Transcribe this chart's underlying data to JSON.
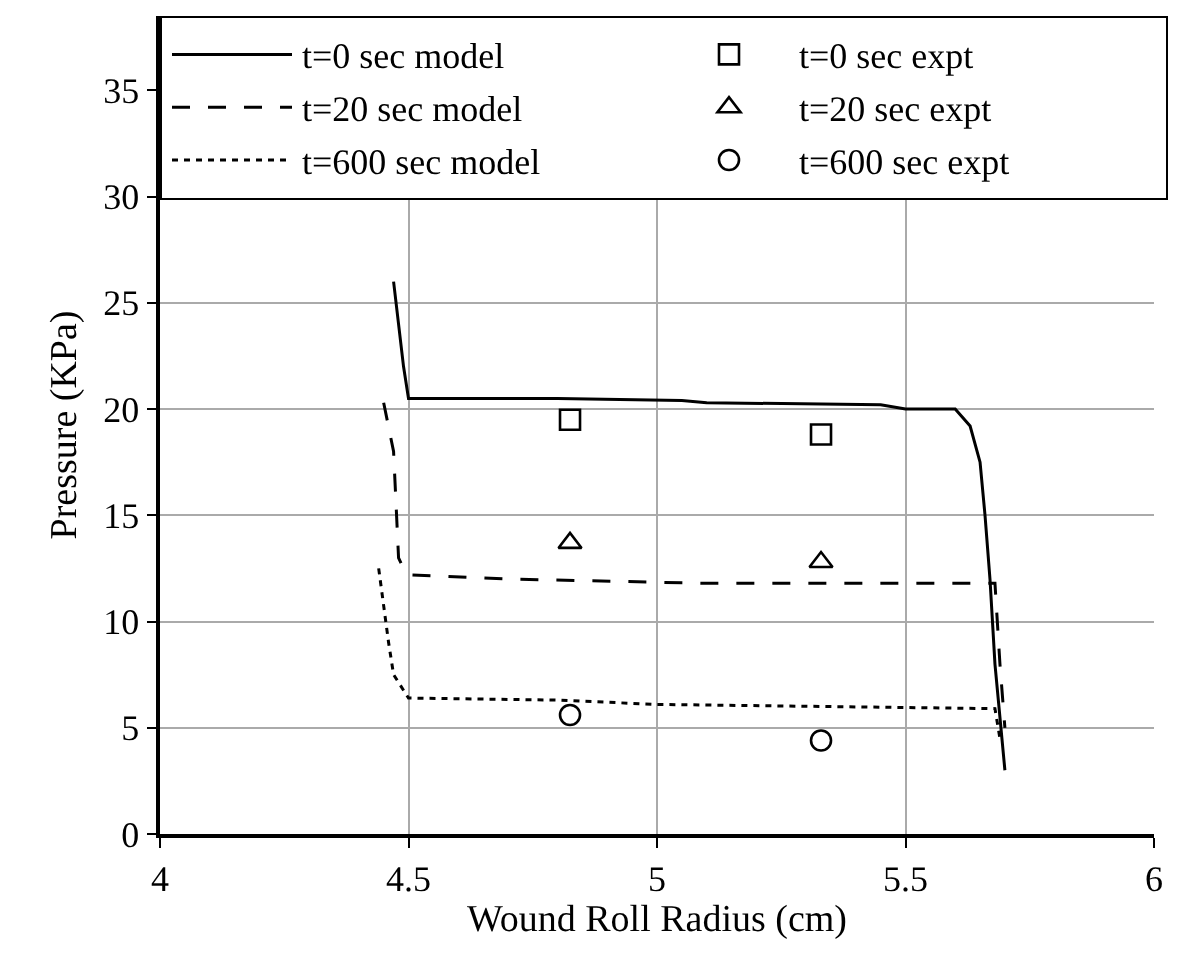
{
  "chart_data": {
    "type": "line",
    "xlabel": "Wound Roll Radius (cm)",
    "ylabel": "Pressure (KPa)",
    "xlim": [
      4,
      6
    ],
    "xticks": [
      4,
      4.5,
      5,
      5.5,
      6
    ],
    "ylim": [
      0,
      38.5
    ],
    "yticks": [
      0,
      5,
      10,
      15,
      20,
      25,
      30,
      35
    ],
    "grid": true,
    "legend": "top",
    "series": [
      {
        "name": "t=0 sec model",
        "line_style": "solid",
        "color": "#000000",
        "x": [
          4.47,
          4.49,
          4.5,
          4.8,
          5.05,
          5.1,
          5.45,
          5.5,
          5.6,
          5.63,
          5.65,
          5.66,
          5.67,
          5.68,
          5.7
        ],
        "values": [
          26,
          22,
          20.5,
          20.5,
          20.4,
          20.3,
          20.2,
          20.0,
          20.0,
          19.2,
          17.5,
          15,
          12,
          8,
          3
        ]
      },
      {
        "name": "t=0 sec expt",
        "type": "scatter",
        "marker": "square",
        "color": "#000000",
        "x": [
          4.825,
          5.33
        ],
        "values": [
          19.5,
          18.8
        ]
      },
      {
        "name": "t=20 sec model",
        "line_style": "dashed",
        "color": "#000000",
        "x": [
          4.45,
          4.47,
          4.48,
          4.49,
          4.5,
          4.7,
          5.1,
          5.68,
          5.69,
          5.7
        ],
        "values": [
          20.3,
          18,
          13,
          12.5,
          12.2,
          12.0,
          11.8,
          11.8,
          8,
          5
        ]
      },
      {
        "name": "t=20 sec expt",
        "type": "scatter",
        "marker": "triangle",
        "color": "#000000",
        "x": [
          4.825,
          5.33
        ],
        "values": [
          13.7,
          12.8
        ]
      },
      {
        "name": "t=600 sec model",
        "line_style": "dotted",
        "color": "#000000",
        "x": [
          4.44,
          4.46,
          4.47,
          4.5,
          4.8,
          5.0,
          5.68,
          5.69
        ],
        "values": [
          12.5,
          9,
          7.5,
          6.4,
          6.3,
          6.1,
          5.9,
          4.5
        ]
      },
      {
        "name": "t=600 sec expt",
        "type": "scatter",
        "marker": "circle",
        "color": "#000000",
        "x": [
          4.825,
          5.33
        ],
        "values": [
          5.6,
          4.4
        ]
      }
    ]
  }
}
